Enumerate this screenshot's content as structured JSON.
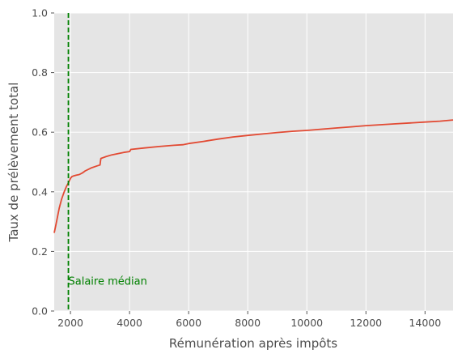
{
  "chart_data": {
    "type": "line",
    "title": "",
    "xlabel": "Rémunération après impôts",
    "ylabel": "Taux de prélèvement total",
    "xlim": [
      1450,
      14950
    ],
    "ylim": [
      0,
      1
    ],
    "xticks": [
      2000,
      4000,
      6000,
      8000,
      10000,
      12000,
      14000
    ],
    "yticks": [
      0.0,
      0.2,
      0.4,
      0.6,
      0.8,
      1.0
    ],
    "xtick_labels": [
      "2000",
      "4000",
      "6000",
      "8000",
      "10000",
      "12000",
      "14000"
    ],
    "ytick_labels": [
      "0.0",
      "0.2",
      "0.4",
      "0.6",
      "0.8",
      "1.0"
    ],
    "grid": true,
    "style": "ggplot",
    "series": [
      {
        "color": "#e24a33",
        "x": [
          1450,
          1500,
          1560,
          1620,
          1700,
          1780,
          1860,
          1940,
          2000,
          2050,
          2100,
          2200,
          2300,
          2400,
          2500,
          2700,
          2900,
          3000,
          3020,
          3030,
          3200,
          3400,
          3600,
          3800,
          4000,
          4020,
          4040,
          4500,
          5000,
          5500,
          5800,
          6000,
          6500,
          7000,
          7500,
          8000,
          8500,
          9000,
          9500,
          10000,
          10500,
          11000,
          11500,
          12000,
          12500,
          13000,
          13500,
          14000,
          14500,
          14950
        ],
        "y": [
          0.262,
          0.285,
          0.315,
          0.345,
          0.375,
          0.398,
          0.417,
          0.432,
          0.445,
          0.451,
          0.453,
          0.456,
          0.458,
          0.463,
          0.47,
          0.48,
          0.487,
          0.49,
          0.505,
          0.512,
          0.518,
          0.524,
          0.528,
          0.532,
          0.535,
          0.538,
          0.542,
          0.547,
          0.552,
          0.556,
          0.558,
          0.562,
          0.569,
          0.577,
          0.584,
          0.589,
          0.594,
          0.599,
          0.603,
          0.606,
          0.61,
          0.614,
          0.618,
          0.622,
          0.625,
          0.628,
          0.631,
          0.634,
          0.637,
          0.641
        ]
      }
    ],
    "vline": {
      "x": 1930,
      "color": "#008000",
      "style": "dashed",
      "label": "Salaire médian",
      "label_y": 0.1
    }
  }
}
